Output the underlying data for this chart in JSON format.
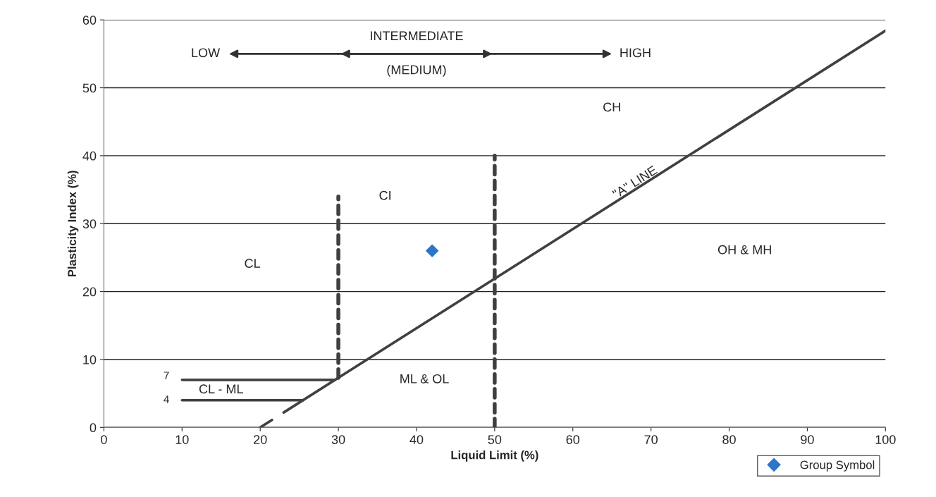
{
  "chart_data": {
    "type": "scatter",
    "xlabel": "Liquid Limit (%)",
    "ylabel": "Plasticity Index (%)",
    "xlim": [
      0,
      100
    ],
    "xticks": [
      0,
      10,
      20,
      30,
      40,
      50,
      60,
      70,
      80,
      90,
      100
    ],
    "ylim": [
      0,
      60
    ],
    "yticks": [
      0,
      10,
      20,
      30,
      40,
      50,
      60
    ],
    "grid": "y",
    "legend": "bottom right",
    "series": [
      {
        "name": "Group Symbol",
        "color": "#2e75c7",
        "marker": "diamond",
        "x": [
          42
        ],
        "values": [
          26
        ]
      },
      {
        "type": "line",
        "color": "#404040",
        "line_style": "solid",
        "x": [
          20,
          21.5
        ],
        "values": [
          0,
          1.1
        ]
      },
      {
        "type": "line",
        "color": "#404040",
        "line_style": "solid",
        "x": [
          23,
          100
        ],
        "values": [
          2.2,
          58.4
        ]
      },
      {
        "type": "line",
        "color": "#404040",
        "line_style": "dashed",
        "x": [
          30,
          30
        ],
        "values": [
          7.3,
          34
        ]
      },
      {
        "type": "line",
        "color": "#404040",
        "line_style": "dashed",
        "x": [
          50,
          50
        ],
        "values": [
          0,
          40
        ]
      },
      {
        "type": "line",
        "color": "#404040",
        "line_style": "solid",
        "x": [
          10,
          29.6
        ],
        "values": [
          7,
          7
        ]
      },
      {
        "type": "line",
        "color": "#404040",
        "line_style": "solid",
        "x": [
          10,
          25.5
        ],
        "values": [
          4,
          4
        ]
      }
    ],
    "annotations": [
      "LOW",
      "INTERMEDIATE",
      "(MEDIUM)",
      "HIGH",
      "CH",
      "CI",
      "CL",
      "OH & MH",
      "ML & OL",
      "CL - ML",
      "\"A\" LINE",
      "7",
      "4"
    ]
  }
}
